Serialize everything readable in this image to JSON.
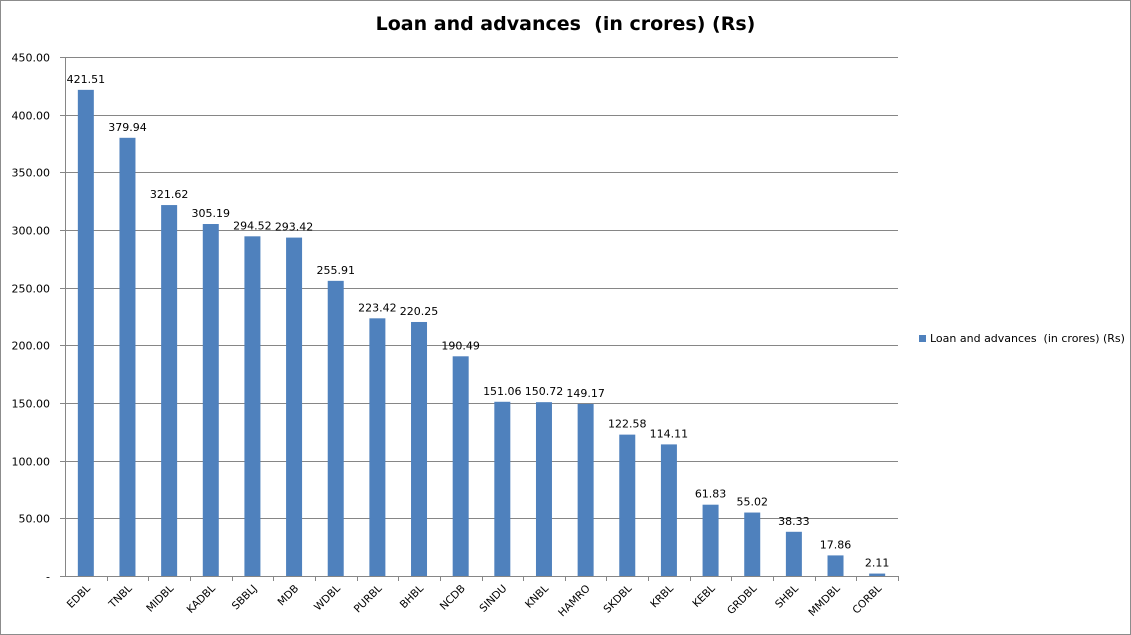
{
  "chart_data": {
    "type": "bar",
    "title": "Loan and advances  (in crores) (Rs)",
    "categories": [
      "EDBL",
      "TNBL",
      "MIDBL",
      "KADBL",
      "SBBLJ",
      "MDB",
      "WDBL",
      "PURBL",
      "BHBL",
      "NCDB",
      "SINDU",
      "KNBL",
      "HAMRO",
      "SKDBL",
      "KRBL",
      "KEBL",
      "GRDBL",
      "SHBL",
      "MMDBL",
      "CORBL"
    ],
    "series": [
      {
        "name": "Loan and advances  (in crores) (Rs)",
        "values": [
          421.51,
          379.94,
          321.62,
          305.19,
          294.52,
          293.42,
          255.91,
          223.42,
          220.25,
          190.49,
          151.06,
          150.72,
          149.17,
          122.58,
          114.11,
          61.83,
          55.02,
          38.33,
          17.86,
          2.11
        ],
        "labels": [
          "421.51",
          "379.94",
          "321.62",
          "305.19",
          "294.52",
          "293.42",
          "255.91",
          "223.42",
          "220.25",
          "190.49",
          "151.06",
          "150.72",
          "149.17",
          "122.58",
          "114.11",
          "61.83",
          "55.02",
          "38.33",
          "17.86",
          "2.11"
        ],
        "color": "#4f81bd"
      }
    ],
    "y_ticks": [
      {
        "value": 0,
        "label": "-"
      },
      {
        "value": 50,
        "label": "50.00"
      },
      {
        "value": 100,
        "label": "100.00"
      },
      {
        "value": 150,
        "label": "150.00"
      },
      {
        "value": 200,
        "label": "200.00"
      },
      {
        "value": 250,
        "label": "250.00"
      },
      {
        "value": 300,
        "label": "300.00"
      },
      {
        "value": 350,
        "label": "350.00"
      },
      {
        "value": 400,
        "label": "400.00"
      },
      {
        "value": 450,
        "label": "450.00"
      }
    ],
    "ylim": [
      0,
      450
    ],
    "xlabel": "",
    "ylabel": "",
    "grid": true,
    "legend": "right",
    "gridline_color": "#868686",
    "axis_color": "#868686"
  }
}
